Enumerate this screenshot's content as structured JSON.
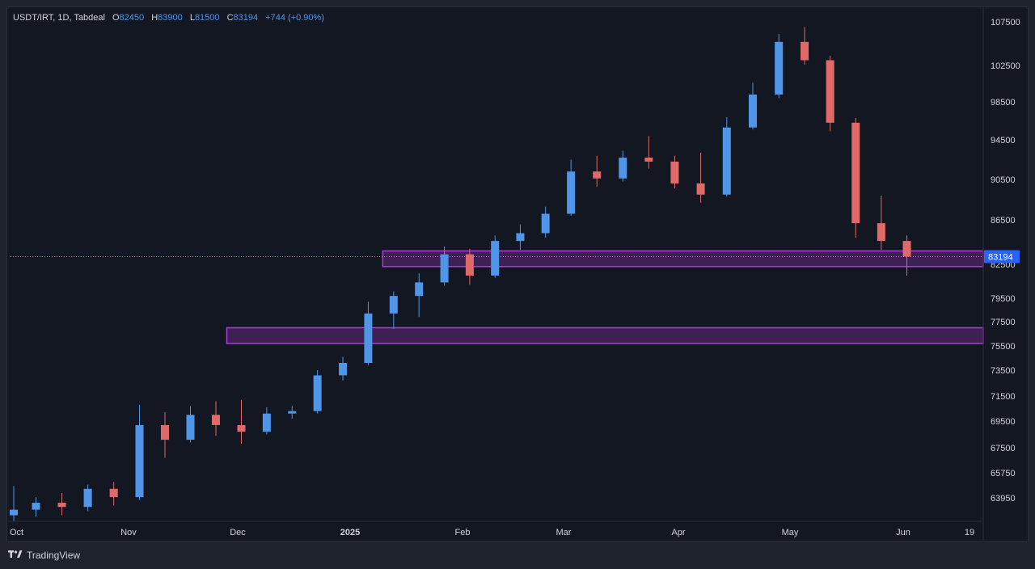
{
  "header": {
    "symbol": "USDT/IRT, 1D, Tabdeal",
    "open_label": "O",
    "open": "82450",
    "high_label": "H",
    "high": "83900",
    "low_label": "L",
    "low": "81500",
    "close_label": "C",
    "close": "83194",
    "change": "+744 (+0.90%)"
  },
  "footer": {
    "brand": "TradingView",
    "logo_icon": "tradingview-logo-icon"
  },
  "colors": {
    "up": "#4f95e8",
    "down": "#e06a6a",
    "zone": "#b03ad8",
    "background": "#131722"
  },
  "chart_data": {
    "type": "candlestick",
    "y_ticks": [
      "107500",
      "102500",
      "98500",
      "94500",
      "90500",
      "86500",
      "82500",
      "79500",
      "77500",
      "75500",
      "73500",
      "71500",
      "69500",
      "67500",
      "65750",
      "63950"
    ],
    "x_ticks": [
      "Oct",
      "Nov",
      "Dec",
      "2025",
      "Feb",
      "Mar",
      "Apr",
      "May",
      "Jun",
      "19"
    ],
    "last_price": "83194",
    "zones": [
      {
        "name": "upper-zone",
        "start": "2025-01-10",
        "y_low": 82300,
        "y_high": 83700
      },
      {
        "name": "lower-zone",
        "start": "2024-11-28",
        "y_low": 75700,
        "y_high": 77000
      }
    ],
    "series": [
      {
        "date": "2024-10-01",
        "o": 62700,
        "h": 64800,
        "l": 62300,
        "c": 63100
      },
      {
        "date": "2024-10-07",
        "o": 63100,
        "h": 64000,
        "l": 62600,
        "c": 63600
      },
      {
        "date": "2024-10-14",
        "o": 63600,
        "h": 64300,
        "l": 62700,
        "c": 63300
      },
      {
        "date": "2024-10-21",
        "o": 63300,
        "h": 64900,
        "l": 63000,
        "c": 64600
      },
      {
        "date": "2024-10-28",
        "o": 64600,
        "h": 65100,
        "l": 63400,
        "c": 64000
      },
      {
        "date": "2024-11-04",
        "o": 64000,
        "h": 70800,
        "l": 63800,
        "c": 69200
      },
      {
        "date": "2024-11-11",
        "o": 69200,
        "h": 70200,
        "l": 66800,
        "c": 68100
      },
      {
        "date": "2024-11-18",
        "o": 68100,
        "h": 70700,
        "l": 67900,
        "c": 70000
      },
      {
        "date": "2024-11-25",
        "o": 70000,
        "h": 71100,
        "l": 68400,
        "c": 69200
      },
      {
        "date": "2024-12-02",
        "o": 69200,
        "h": 71200,
        "l": 67800,
        "c": 68700
      },
      {
        "date": "2024-12-09",
        "o": 68700,
        "h": 70600,
        "l": 68500,
        "c": 70100
      },
      {
        "date": "2024-12-16",
        "o": 70100,
        "h": 70700,
        "l": 69700,
        "c": 70300
      },
      {
        "date": "2024-12-23",
        "o": 70300,
        "h": 73500,
        "l": 70100,
        "c": 73100
      },
      {
        "date": "2024-12-30",
        "o": 73100,
        "h": 74600,
        "l": 72700,
        "c": 74100
      },
      {
        "date": "2025-01-06",
        "o": 74100,
        "h": 79200,
        "l": 73900,
        "c": 78200
      },
      {
        "date": "2025-01-13",
        "o": 78200,
        "h": 80100,
        "l": 76900,
        "c": 79700
      },
      {
        "date": "2025-01-20",
        "o": 79700,
        "h": 81700,
        "l": 77900,
        "c": 80900
      },
      {
        "date": "2025-01-27",
        "o": 80900,
        "h": 84100,
        "l": 80600,
        "c": 83400
      },
      {
        "date": "2025-02-03",
        "o": 83400,
        "h": 83900,
        "l": 80700,
        "c": 81500
      },
      {
        "date": "2025-02-10",
        "o": 81500,
        "h": 85100,
        "l": 81300,
        "c": 84600
      },
      {
        "date": "2025-02-17",
        "o": 84600,
        "h": 86100,
        "l": 83800,
        "c": 85300
      },
      {
        "date": "2025-02-24",
        "o": 85300,
        "h": 87800,
        "l": 84900,
        "c": 87100
      },
      {
        "date": "2025-03-03",
        "o": 87100,
        "h": 92500,
        "l": 86900,
        "c": 91300
      },
      {
        "date": "2025-03-10",
        "o": 91300,
        "h": 92900,
        "l": 89800,
        "c": 90600
      },
      {
        "date": "2025-03-17",
        "o": 90600,
        "h": 93400,
        "l": 90300,
        "c": 92700
      },
      {
        "date": "2025-03-24",
        "o": 92700,
        "h": 94900,
        "l": 91600,
        "c": 92300
      },
      {
        "date": "2025-03-31",
        "o": 92300,
        "h": 92900,
        "l": 89600,
        "c": 90100
      },
      {
        "date": "2025-04-07",
        "o": 90100,
        "h": 93200,
        "l": 88200,
        "c": 89000
      },
      {
        "date": "2025-04-14",
        "o": 89000,
        "h": 96900,
        "l": 88800,
        "c": 95800
      },
      {
        "date": "2025-04-21",
        "o": 95800,
        "h": 100600,
        "l": 95600,
        "c": 99300
      },
      {
        "date": "2025-04-28",
        "o": 99300,
        "h": 106100,
        "l": 98900,
        "c": 105200
      },
      {
        "date": "2025-05-05",
        "o": 105200,
        "h": 106900,
        "l": 102600,
        "c": 103100
      },
      {
        "date": "2025-05-12",
        "o": 103100,
        "h": 103600,
        "l": 95400,
        "c": 96300
      },
      {
        "date": "2025-05-19",
        "o": 96300,
        "h": 96800,
        "l": 84900,
        "c": 86200
      },
      {
        "date": "2025-05-26",
        "o": 86200,
        "h": 88900,
        "l": 83800,
        "c": 84600
      },
      {
        "date": "2025-06-02",
        "o": 84600,
        "h": 85100,
        "l": 81500,
        "c": 83194
      }
    ]
  }
}
